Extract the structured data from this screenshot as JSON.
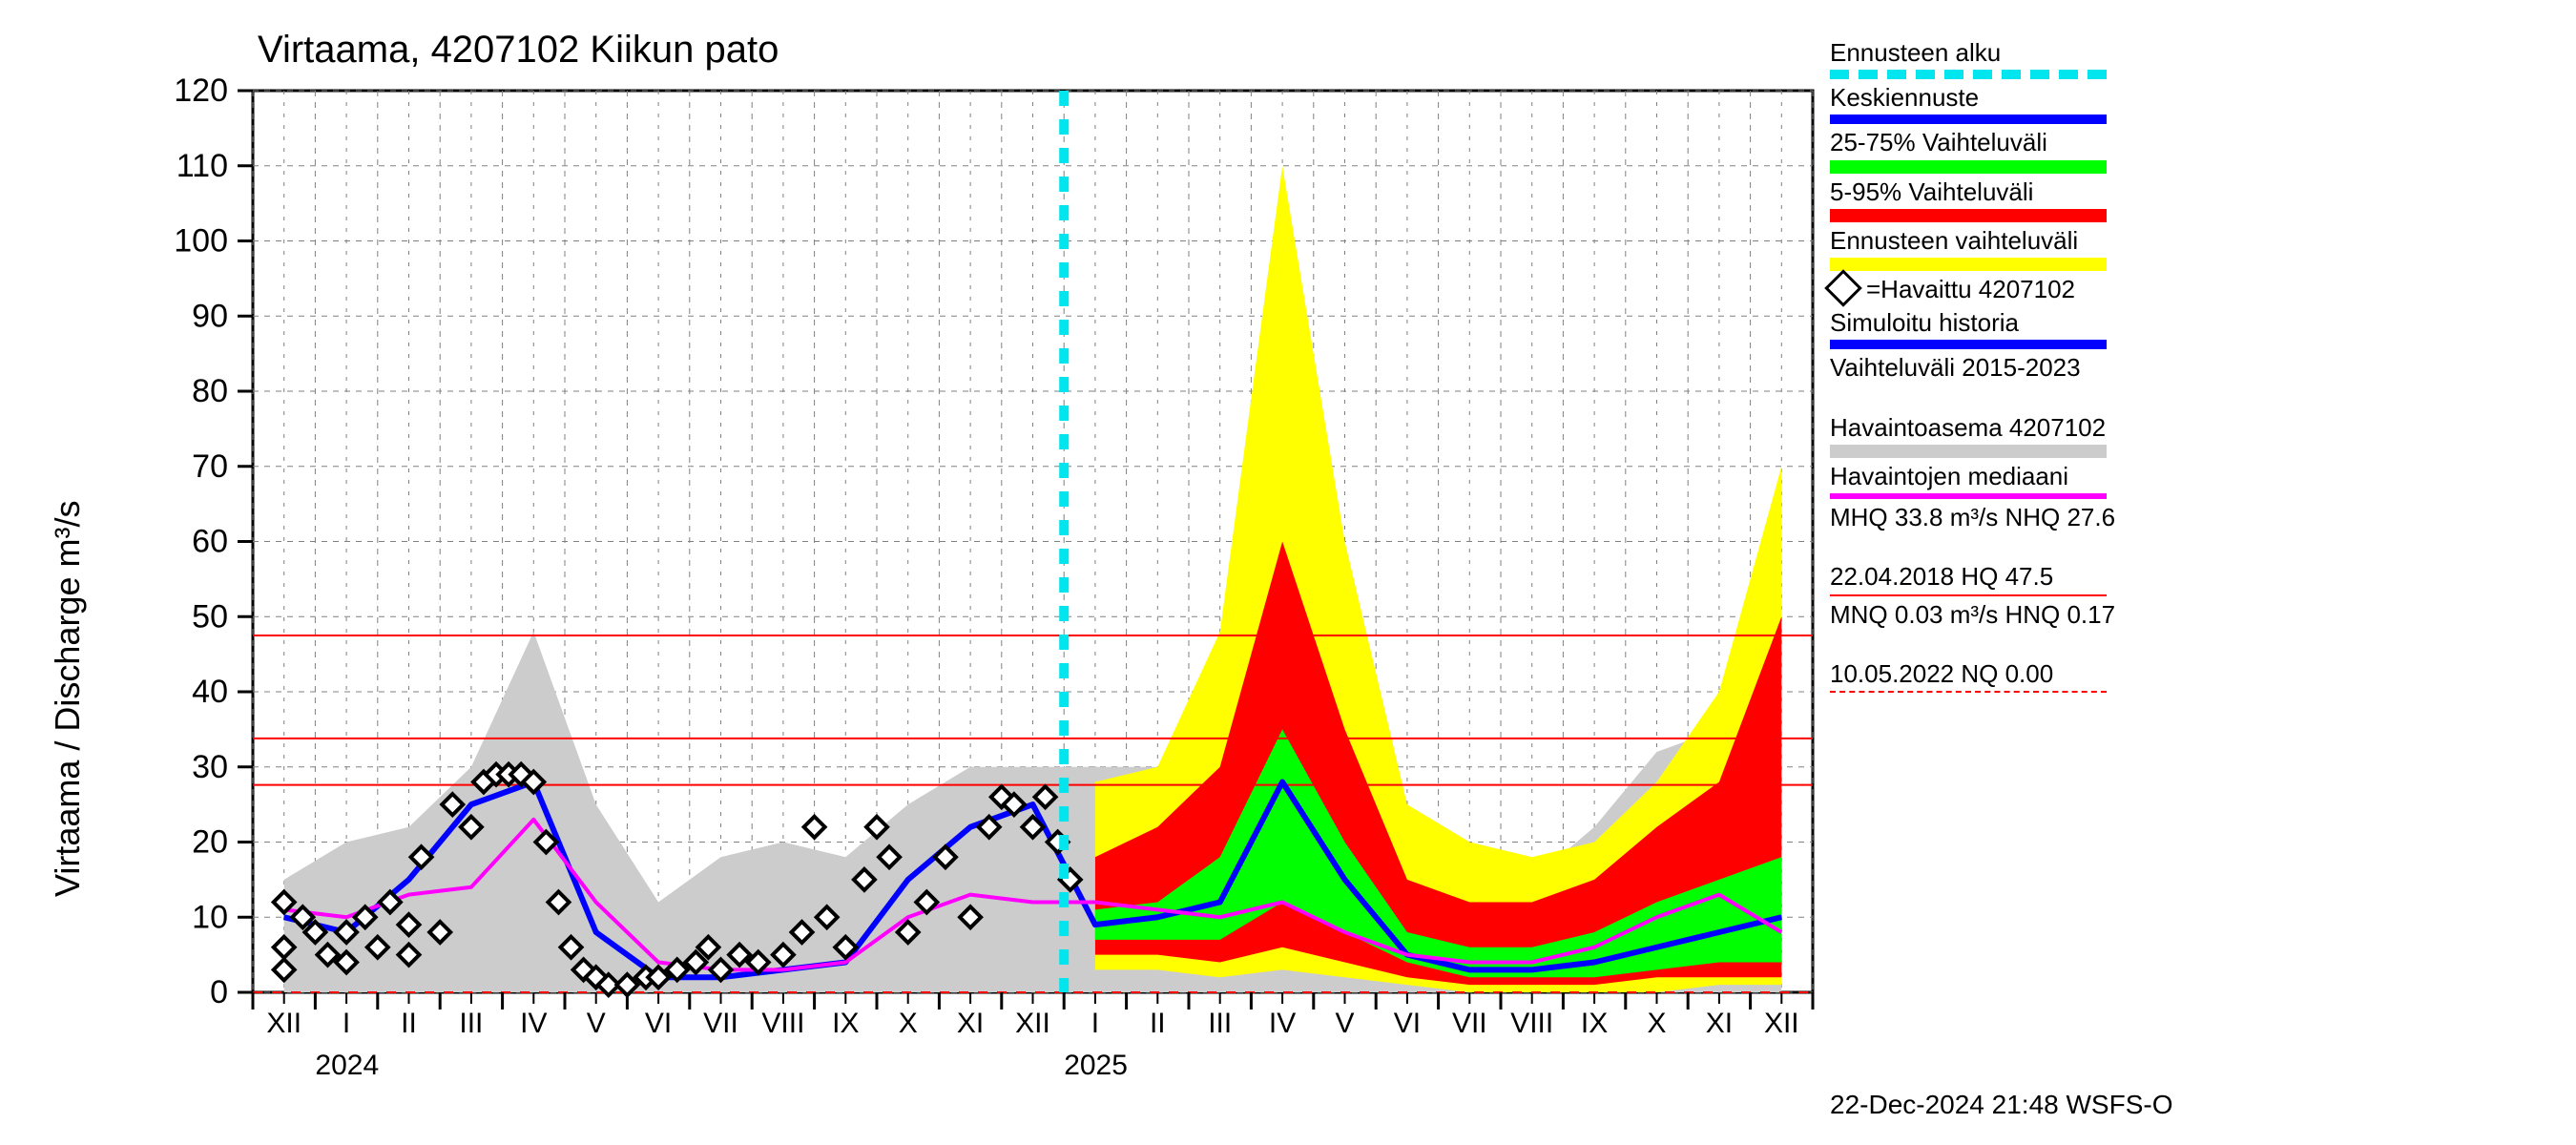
{
  "chart": {
    "type": "line-area-forecast",
    "title": "Virtaama, 4207102 Kiikun pato",
    "ylabel": "Virtaama / Discharge   m³/s",
    "background_color": "#ffffff",
    "grid_color": "#808080",
    "axis_color": "#000000",
    "title_fontsize": 40,
    "label_fontsize": 36,
    "tick_fontsize": 30,
    "ylim": [
      0,
      120
    ],
    "ytick_step": 10,
    "yticks": [
      0,
      10,
      20,
      30,
      40,
      50,
      60,
      70,
      80,
      90,
      100,
      110,
      120
    ],
    "x_months": [
      "XII",
      "I",
      "II",
      "III",
      "IV",
      "V",
      "VI",
      "VII",
      "VIII",
      "IX",
      "X",
      "XI",
      "XII",
      "I",
      "II",
      "III",
      "IV",
      "V",
      "VI",
      "VII",
      "VIII",
      "IX",
      "X",
      "XI",
      "XII"
    ],
    "x_year_marks": [
      {
        "label": "2024",
        "after_index": 1
      },
      {
        "label": "2025",
        "after_index": 13
      }
    ],
    "forecast_start_index": 13,
    "ref_lines": [
      {
        "value": 47.5,
        "color": "#ff0000",
        "dash": false,
        "width": 2
      },
      {
        "value": 33.8,
        "color": "#ff0000",
        "dash": false,
        "width": 2
      },
      {
        "value": 27.6,
        "color": "#ff0000",
        "dash": false,
        "width": 2
      },
      {
        "value": 0.0,
        "color": "#ff0000",
        "dash": true,
        "width": 2
      }
    ],
    "series": {
      "range_full_yellow": {
        "color": "#ffff00",
        "lo": [
          null,
          null,
          null,
          null,
          null,
          null,
          null,
          null,
          null,
          null,
          null,
          null,
          null,
          3,
          3,
          2,
          3,
          2,
          1,
          0,
          0,
          0,
          0,
          1,
          1
        ],
        "hi": [
          null,
          null,
          null,
          null,
          null,
          null,
          null,
          null,
          null,
          null,
          null,
          null,
          null,
          28,
          30,
          48,
          110,
          60,
          25,
          20,
          18,
          20,
          28,
          40,
          70
        ]
      },
      "range_5_95_red": {
        "color": "#ff0000",
        "lo": [
          null,
          null,
          null,
          null,
          null,
          null,
          null,
          null,
          null,
          null,
          null,
          null,
          null,
          5,
          5,
          4,
          6,
          4,
          2,
          1,
          1,
          1,
          2,
          2,
          2
        ],
        "hi": [
          null,
          null,
          null,
          null,
          null,
          null,
          null,
          null,
          null,
          null,
          null,
          null,
          null,
          18,
          22,
          30,
          60,
          35,
          15,
          12,
          12,
          15,
          22,
          28,
          50
        ]
      },
      "range_25_75_green": {
        "color": "#00ff00",
        "lo": [
          null,
          null,
          null,
          null,
          null,
          null,
          null,
          null,
          null,
          null,
          null,
          null,
          null,
          7,
          7,
          7,
          12,
          8,
          4,
          2,
          2,
          2,
          3,
          4,
          4
        ],
        "hi": [
          null,
          null,
          null,
          null,
          null,
          null,
          null,
          null,
          null,
          null,
          null,
          null,
          null,
          11,
          12,
          18,
          35,
          20,
          8,
          6,
          6,
          8,
          12,
          15,
          18
        ]
      },
      "grey_hist_range": {
        "color": "#cccccc",
        "lo": [
          0,
          0,
          0,
          0,
          0,
          0,
          0,
          0,
          0,
          0,
          0,
          0,
          0,
          0,
          0,
          0,
          0,
          0,
          0,
          0,
          0,
          0,
          0,
          0,
          0
        ],
        "hi": [
          15,
          20,
          22,
          30,
          48,
          25,
          12,
          18,
          20,
          18,
          25,
          30,
          30,
          30,
          30,
          32,
          48,
          32,
          22,
          18,
          15,
          22,
          32,
          35,
          35
        ]
      },
      "median_forecast_blue": {
        "color": "#0000ff",
        "width": 6,
        "y": [
          10,
          8,
          15,
          25,
          28,
          8,
          2,
          2,
          3,
          4,
          15,
          22,
          25,
          9,
          10,
          12,
          28,
          15,
          5,
          3,
          3,
          4,
          6,
          8,
          10
        ]
      },
      "observed_median_magenta": {
        "color": "#ff00ff",
        "width": 4,
        "y": [
          11,
          10,
          13,
          14,
          23,
          12,
          4,
          3,
          3,
          4,
          10,
          13,
          12,
          12,
          11,
          10,
          12,
          8,
          5,
          4,
          4,
          6,
          10,
          13,
          8
        ]
      },
      "observed_diamonds": {
        "color": "#000000",
        "points": [
          [
            0,
            12
          ],
          [
            0,
            6
          ],
          [
            0,
            3
          ],
          [
            0.3,
            10
          ],
          [
            0.5,
            8
          ],
          [
            0.7,
            5
          ],
          [
            1,
            8
          ],
          [
            1,
            4
          ],
          [
            1.3,
            10
          ],
          [
            1.5,
            6
          ],
          [
            1.7,
            12
          ],
          [
            2,
            9
          ],
          [
            2,
            5
          ],
          [
            2.2,
            18
          ],
          [
            2.5,
            8
          ],
          [
            2.7,
            25
          ],
          [
            3,
            22
          ],
          [
            3.2,
            28
          ],
          [
            3.4,
            29
          ],
          [
            3.6,
            29
          ],
          [
            3.8,
            29
          ],
          [
            4,
            28
          ],
          [
            4.2,
            20
          ],
          [
            4.4,
            12
          ],
          [
            4.6,
            6
          ],
          [
            4.8,
            3
          ],
          [
            5,
            2
          ],
          [
            5.2,
            1
          ],
          [
            5.5,
            1
          ],
          [
            5.8,
            2
          ],
          [
            6,
            2
          ],
          [
            6.3,
            3
          ],
          [
            6.6,
            4
          ],
          [
            6.8,
            6
          ],
          [
            7,
            3
          ],
          [
            7.3,
            5
          ],
          [
            7.6,
            4
          ],
          [
            8,
            5
          ],
          [
            8.3,
            8
          ],
          [
            8.5,
            22
          ],
          [
            8.7,
            10
          ],
          [
            9,
            6
          ],
          [
            9.3,
            15
          ],
          [
            9.5,
            22
          ],
          [
            9.7,
            18
          ],
          [
            10,
            8
          ],
          [
            10.3,
            12
          ],
          [
            10.6,
            18
          ],
          [
            11,
            10
          ],
          [
            11.3,
            22
          ],
          [
            11.5,
            26
          ],
          [
            11.7,
            25
          ],
          [
            12,
            22
          ],
          [
            12.2,
            26
          ],
          [
            12.4,
            20
          ],
          [
            12.6,
            15
          ]
        ]
      }
    }
  },
  "legend": {
    "items": [
      {
        "label": "Ennusteen alku",
        "style": "dash",
        "color": "#00e5ee",
        "thick": 10
      },
      {
        "label": "Keskiennuste",
        "style": "line",
        "color": "#0000ff",
        "thick": 10
      },
      {
        "label": "25-75% Vaihteluväli",
        "style": "block",
        "color": "#00ff00"
      },
      {
        "label": "5-95% Vaihteluväli",
        "style": "block",
        "color": "#ff0000"
      },
      {
        "label": "Ennusteen vaihteluväli",
        "style": "block",
        "color": "#ffff00"
      },
      {
        "label": "=Havaittu 4207102",
        "style": "marker",
        "color": "#000000"
      },
      {
        "label": "Simuloitu historia",
        "style": "line",
        "color": "#0000ff",
        "thick": 10
      },
      {
        "label": "Vaihteluväli 2015-2023\n Havaintoasema 4207102",
        "style": "block",
        "color": "#cccccc"
      },
      {
        "label": "Havaintojen mediaani",
        "style": "line",
        "color": "#ff00ff",
        "thick": 6
      },
      {
        "label": "MHQ 33.8 m³/s NHQ 27.6\n22.04.2018 HQ 47.5",
        "style": "thin",
        "color": "#ff0000"
      },
      {
        "label": "MNQ 0.03 m³/s HNQ 0.17\n10.05.2022 NQ 0.00",
        "style": "thin-dash",
        "color": "#ff0000"
      }
    ]
  },
  "timestamp": "22-Dec-2024 21:48 WSFS-O"
}
